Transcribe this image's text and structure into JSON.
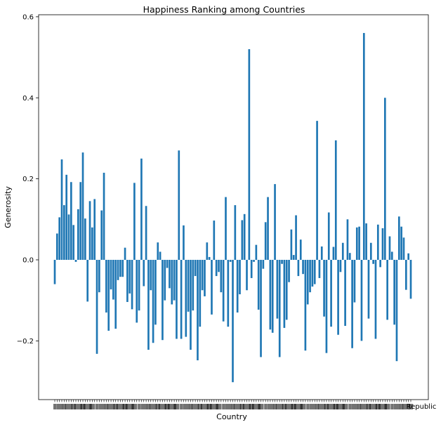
{
  "chart_data": {
    "type": "bar",
    "title": "Happiness Ranking among Countries",
    "xlabel": "Country",
    "ylabel": "Generosity",
    "ylim": [
      -0.345,
      0.605
    ],
    "yticks": [
      -0.2,
      0.0,
      0.2,
      0.4,
      0.6
    ],
    "ytick_labels": [
      "−0.2",
      "0.0",
      "0.2",
      "0.4",
      "0.6"
    ],
    "xtick_labels_note": "Country tick labels overlap into an illegible band; only the rightmost label fragment \"Republic\" is readable.",
    "last_xtick_label": "Republic",
    "grid": false,
    "legend": "none",
    "color": "#1f77b4",
    "values": [
      -0.06,
      0.065,
      0.105,
      0.248,
      0.135,
      0.21,
      0.112,
      0.192,
      0.086,
      -0.005,
      0.125,
      0.192,
      0.265,
      0.102,
      -0.103,
      0.145,
      0.08,
      0.15,
      -0.232,
      -0.08,
      0.122,
      0.215,
      -0.13,
      -0.175,
      -0.073,
      -0.098,
      -0.17,
      -0.05,
      -0.042,
      -0.042,
      0.03,
      -0.104,
      -0.083,
      -0.122,
      0.19,
      -0.155,
      -0.125,
      0.25,
      -0.065,
      0.133,
      -0.222,
      -0.075,
      -0.205,
      -0.16,
      0.043,
      0.02,
      -0.198,
      -0.1,
      -0.02,
      -0.07,
      -0.11,
      -0.1,
      -0.195,
      0.27,
      -0.195,
      0.085,
      -0.19,
      -0.128,
      -0.222,
      -0.125,
      -0.04,
      -0.248,
      -0.165,
      -0.075,
      -0.09,
      0.043,
      0.007,
      -0.135,
      0.097,
      -0.04,
      -0.03,
      -0.08,
      -0.152,
      0.155,
      -0.165,
      -0.005,
      -0.302,
      0.135,
      -0.13,
      -0.085,
      0.098,
      0.113,
      -0.075,
      0.52,
      -0.045,
      -0.005,
      0.037,
      -0.123,
      -0.24,
      -0.022,
      0.093,
      0.155,
      -0.172,
      -0.18,
      0.187,
      -0.145,
      -0.24,
      -0.01,
      -0.168,
      -0.148,
      -0.055,
      0.075,
      0.012,
      0.11,
      -0.04,
      0.05,
      -0.035,
      -0.224,
      -0.11,
      -0.08,
      -0.066,
      -0.06,
      0.343,
      -0.045,
      0.033,
      -0.14,
      -0.23,
      0.117,
      -0.165,
      0.032,
      0.295,
      -0.185,
      -0.03,
      0.042,
      -0.163,
      0.1,
      0.017,
      -0.218,
      -0.105,
      0.08,
      0.082,
      -0.2,
      0.56,
      0.09,
      -0.145,
      0.042,
      -0.01,
      -0.195,
      0.087,
      -0.018,
      0.078,
      0.4,
      -0.148,
      0.058,
      0.02,
      -0.16,
      -0.25,
      0.107,
      0.082,
      0.055,
      -0.074,
      0.016,
      -0.096
    ]
  }
}
